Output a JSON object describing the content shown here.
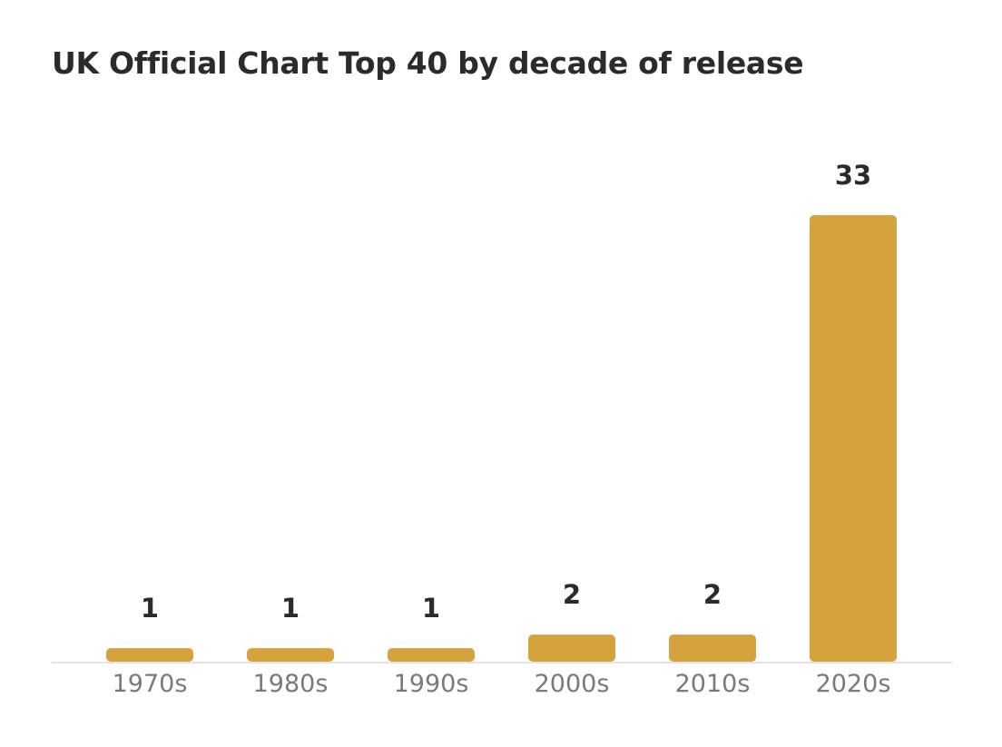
{
  "title": "UK Official Chart Top 40 by decade of release",
  "chart_data": {
    "type": "bar",
    "title": "UK Official Chart Top 40 by decade of release",
    "categories": [
      "1970s",
      "1980s",
      "1990s",
      "2000s",
      "2010s",
      "2020s"
    ],
    "values": [
      1,
      1,
      1,
      2,
      2,
      33
    ],
    "data_labels": [
      "1",
      "1",
      "1",
      "2",
      "2",
      "33"
    ],
    "xlabel": "",
    "ylabel": "",
    "ylim": [
      0,
      33
    ],
    "grid": false,
    "legend": "none",
    "bar_color": "#D6A23D",
    "axis_color": "#E3E3E3"
  }
}
